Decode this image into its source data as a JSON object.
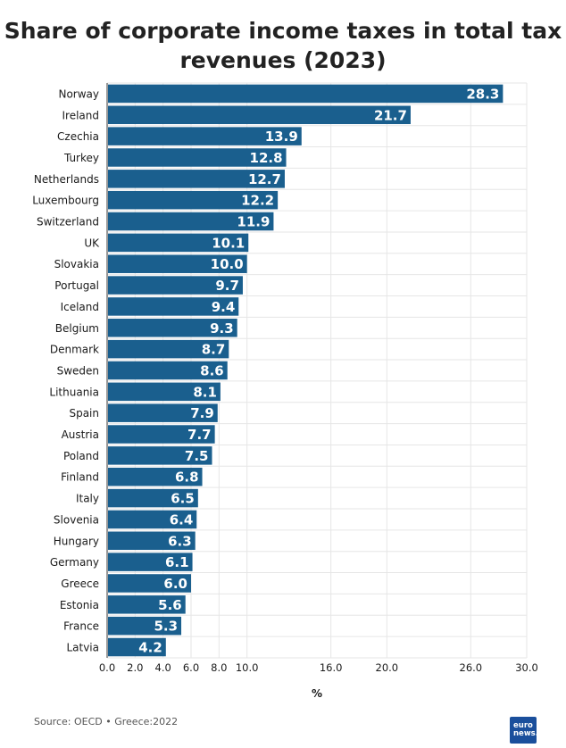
{
  "title_line1": "Share of corporate income taxes in total tax",
  "title_line2": "revenues (2023)",
  "source": "Source: OECD • Greece:2022",
  "logo_text": "euro news.",
  "bar_color": "#1a5f8e",
  "chart_data": {
    "type": "bar",
    "orientation": "horizontal",
    "title": "Share of corporate income taxes in total tax revenues (2023)",
    "xlabel": "%",
    "ylabel": "",
    "xlim": [
      0,
      30
    ],
    "xticks": [
      "0.0",
      "2.0",
      "4.0",
      "6.0",
      "8.0",
      "10.0",
      "16.0",
      "20.0",
      "26.0",
      "30.0"
    ],
    "xtick_values": [
      0,
      2,
      4,
      6,
      8,
      10,
      16,
      20,
      26,
      30
    ],
    "grid": true,
    "categories": [
      "Norway",
      "Ireland",
      "Czechia",
      "Turkey",
      "Netherlands",
      "Luxembourg",
      "Switzerland",
      "UK",
      "Slovakia",
      "Portugal",
      "Iceland",
      "Belgium",
      "Denmark",
      "Sweden",
      "Lithuania",
      "Spain",
      "Austria",
      "Poland",
      "Finland",
      "Italy",
      "Slovenia",
      "Hungary",
      "Germany",
      "Greece",
      "Estonia",
      "France",
      "Latvia"
    ],
    "values": [
      28.3,
      21.7,
      13.9,
      12.8,
      12.7,
      12.2,
      11.9,
      10.1,
      10.0,
      9.7,
      9.4,
      9.3,
      8.7,
      8.6,
      8.1,
      7.9,
      7.7,
      7.5,
      6.8,
      6.5,
      6.4,
      6.3,
      6.1,
      6.0,
      5.6,
      5.3,
      4.2
    ],
    "value_labels": [
      "28.3",
      "21.7",
      "13.9",
      "12.8",
      "12.7",
      "12.2",
      "11.9",
      "10.1",
      "10.0",
      "9.7",
      "9.4",
      "9.3",
      "8.7",
      "8.6",
      "8.1",
      "7.9",
      "7.7",
      "7.5",
      "6.8",
      "6.5",
      "6.4",
      "6.3",
      "6.1",
      "6.0",
      "5.6",
      "5.3",
      "4.2"
    ]
  }
}
